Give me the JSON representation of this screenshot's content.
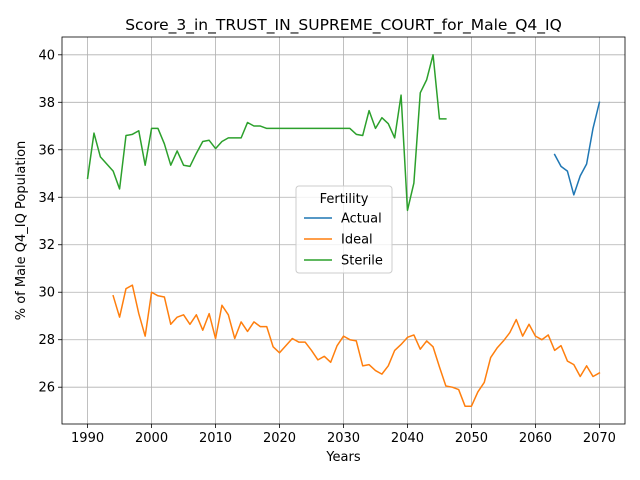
{
  "chart_data": {
    "type": "line",
    "title": "Score_3_in_TRUST_IN_SUPREME_COURT_for_Male_Q4_IQ",
    "xlabel": "Years",
    "ylabel": "% of Male Q4_IQ Population",
    "xlim": [
      1986.0,
      2074.0
    ],
    "ylim": [
      24.45,
      40.75
    ],
    "xticks": [
      1990,
      2000,
      2010,
      2020,
      2030,
      2040,
      2050,
      2060,
      2070
    ],
    "yticks": [
      26,
      28,
      30,
      32,
      34,
      36,
      38,
      40
    ],
    "grid": true,
    "legend": {
      "title": "Fertility",
      "placement": "center"
    },
    "series": [
      {
        "name": "Actual",
        "color": "#1f77b4",
        "x": [
          2063,
          2064,
          2065,
          2066,
          2067,
          2068,
          2069,
          2070
        ],
        "y": [
          35.8,
          35.3,
          35.1,
          34.1,
          34.9,
          35.4,
          36.9,
          38.0
        ]
      },
      {
        "name": "Ideal",
        "color": "#ff7f0e",
        "x": [
          1994,
          1995,
          1996,
          1997,
          1998,
          1999,
          2000,
          2001,
          2002,
          2003,
          2004,
          2005,
          2006,
          2007,
          2008,
          2009,
          2010,
          2011,
          2012,
          2013,
          2014,
          2015,
          2016,
          2017,
          2018,
          2019,
          2020,
          2021,
          2022,
          2023,
          2024,
          2025,
          2026,
          2027,
          2028,
          2029,
          2030,
          2031,
          2032,
          2033,
          2034,
          2035,
          2036,
          2037,
          2038,
          2039,
          2040,
          2041,
          2042,
          2043,
          2044,
          2045,
          2046,
          2047,
          2048,
          2049,
          2050,
          2051,
          2052,
          2053,
          2054,
          2055,
          2056,
          2057,
          2058,
          2059,
          2060,
          2061,
          2062,
          2063,
          2064,
          2065,
          2066,
          2067,
          2068,
          2069,
          2070
        ],
        "y": [
          29.85,
          28.95,
          30.15,
          30.3,
          29.1,
          28.15,
          30.0,
          29.85,
          29.8,
          28.65,
          28.95,
          29.05,
          28.65,
          29.05,
          28.4,
          29.1,
          28.05,
          29.45,
          29.05,
          28.05,
          28.75,
          28.35,
          28.75,
          28.55,
          28.55,
          27.7,
          27.45,
          27.75,
          28.05,
          27.9,
          27.9,
          27.55,
          27.15,
          27.3,
          27.05,
          27.75,
          28.15,
          28.0,
          27.95,
          26.9,
          26.95,
          26.7,
          26.55,
          26.9,
          27.55,
          27.8,
          28.1,
          28.2,
          27.6,
          27.95,
          27.7,
          26.85,
          26.05,
          26.0,
          25.9,
          25.2,
          25.2,
          25.8,
          26.2,
          27.25,
          27.65,
          27.95,
          28.3,
          28.85,
          28.15,
          28.65,
          28.15,
          28.0,
          28.2,
          27.55,
          27.75,
          27.1,
          26.95,
          26.45,
          26.9,
          26.45,
          26.6
        ]
      },
      {
        "name": "Sterile",
        "color": "#2ca02c",
        "x": [
          1990,
          1991,
          1992,
          1993,
          1994,
          1995,
          1996,
          1997,
          1998,
          1999,
          2000,
          2001,
          2002,
          2003,
          2004,
          2005,
          2006,
          2007,
          2008,
          2009,
          2010,
          2011,
          2012,
          2013,
          2014,
          2015,
          2016,
          2017,
          2018,
          2019,
          2020,
          2021,
          2022,
          2023,
          2024,
          2025,
          2026,
          2027,
          2028,
          2029,
          2030,
          2031,
          2032,
          2033,
          2034,
          2035,
          2036,
          2037,
          2038,
          2039,
          2040,
          2041,
          2042,
          2043,
          2044,
          2045,
          2046
        ],
        "y": [
          34.8,
          36.7,
          35.7,
          35.4,
          35.1,
          34.35,
          36.6,
          36.65,
          36.8,
          35.35,
          36.9,
          36.9,
          36.25,
          35.35,
          35.95,
          35.35,
          35.3,
          35.85,
          36.35,
          36.4,
          36.05,
          36.35,
          36.5,
          36.5,
          36.5,
          37.15,
          37.0,
          37.0,
          36.9,
          36.9,
          36.9,
          36.9,
          36.9,
          36.9,
          36.9,
          36.9,
          36.9,
          36.9,
          36.9,
          36.9,
          36.9,
          36.9,
          36.65,
          36.6,
          37.65,
          36.9,
          37.35,
          37.1,
          36.5,
          38.3,
          33.45,
          34.6,
          38.4,
          38.95,
          40.0,
          37.3,
          37.3
        ]
      }
    ]
  }
}
